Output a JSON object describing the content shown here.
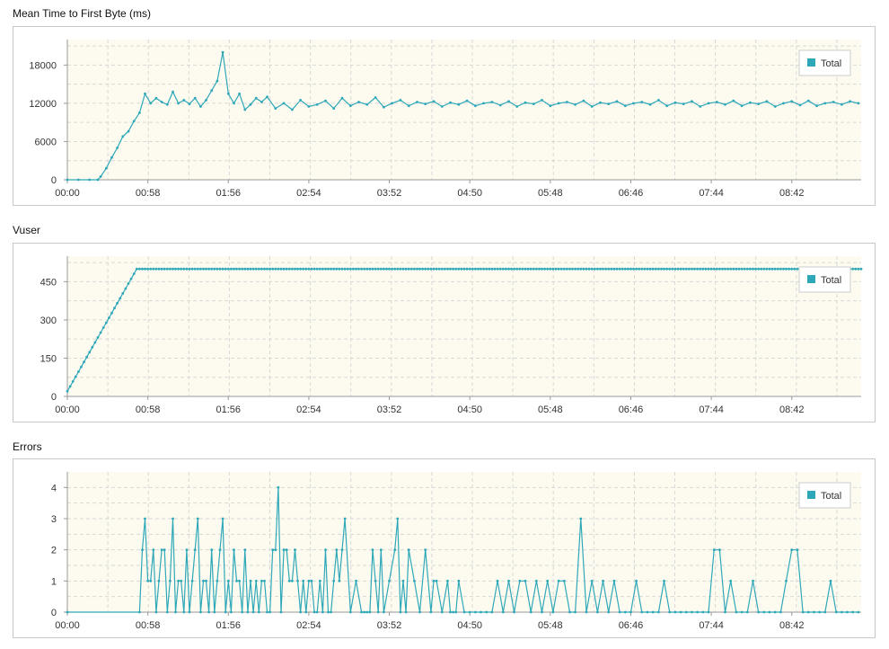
{
  "colors": {
    "series": "#2ea8b8",
    "plot_bg": "#fdfbf0",
    "grid": "#d8d8d8",
    "axis": "#999999"
  },
  "charts": [
    {
      "title": "Mean Time to First Byte (ms)"
    },
    {
      "title": "Vuser"
    },
    {
      "title": "Errors"
    }
  ],
  "chart_data": [
    {
      "type": "line",
      "title": "Mean Time to First Byte (ms)",
      "xlabel": "",
      "ylabel": "",
      "x_ticks": [
        "00:00",
        "00:58",
        "01:56",
        "02:54",
        "03:52",
        "04:50",
        "05:48",
        "06:46",
        "07:44",
        "08:42"
      ],
      "y_ticks": [
        0,
        6000,
        12000,
        18000
      ],
      "ylim": [
        0,
        22000
      ],
      "x_range_seconds": [
        0,
        572
      ],
      "grid": true,
      "legend": "top-right",
      "series": [
        {
          "name": "Total",
          "x": [
            0,
            8,
            16,
            22,
            24,
            28,
            32,
            36,
            40,
            44,
            48,
            52,
            56,
            60,
            64,
            68,
            72,
            76,
            80,
            84,
            88,
            92,
            96,
            100,
            104,
            108,
            112,
            116,
            120,
            124,
            128,
            132,
            136,
            140,
            144,
            150,
            156,
            162,
            168,
            174,
            180,
            186,
            192,
            198,
            204,
            210,
            216,
            222,
            228,
            234,
            240,
            246,
            252,
            258,
            264,
            270,
            276,
            282,
            288,
            294,
            300,
            306,
            312,
            318,
            324,
            330,
            336,
            342,
            348,
            354,
            360,
            366,
            372,
            378,
            384,
            390,
            396,
            402,
            408,
            414,
            420,
            426,
            432,
            438,
            444,
            450,
            456,
            462,
            468,
            474,
            480,
            486,
            492,
            498,
            504,
            510,
            516,
            522,
            528,
            534,
            540,
            546,
            552,
            558,
            564,
            570
          ],
          "y": [
            0,
            0,
            0,
            0,
            500,
            1800,
            3500,
            5000,
            6800,
            7600,
            9200,
            10500,
            13500,
            12000,
            12800,
            12200,
            11800,
            13800,
            12000,
            12500,
            11900,
            12800,
            11500,
            12500,
            14000,
            15500,
            20000,
            13500,
            12000,
            13500,
            11000,
            11800,
            12800,
            12200,
            13000,
            11200,
            12000,
            11000,
            12500,
            11500,
            11800,
            12400,
            11200,
            12800,
            11600,
            12200,
            11800,
            12900,
            11400,
            12000,
            12500,
            11600,
            12200,
            11900,
            12300,
            11500,
            12100,
            11800,
            12400,
            11600,
            12000,
            12200,
            11700,
            12300,
            11500,
            12100,
            11900,
            12500,
            11600,
            12000,
            12200,
            11800,
            12400,
            11500,
            12100,
            11900,
            12300,
            11600,
            12000,
            12200,
            11800,
            12500,
            11600,
            12100,
            11900,
            12300,
            11500,
            12000,
            12200,
            11800,
            12400,
            11600,
            12100,
            11900,
            12300,
            11500,
            12000,
            12300,
            11700,
            12400,
            11600,
            12000,
            12200,
            11800,
            12300,
            12000
          ]
        }
      ]
    },
    {
      "type": "line",
      "title": "Vuser",
      "xlabel": "",
      "ylabel": "",
      "x_ticks": [
        "00:00",
        "00:58",
        "01:56",
        "02:54",
        "03:52",
        "04:50",
        "05:48",
        "06:46",
        "07:44",
        "08:42"
      ],
      "y_ticks": [
        0,
        150,
        300,
        450
      ],
      "ylim": [
        0,
        550
      ],
      "x_range_seconds": [
        0,
        572
      ],
      "grid": true,
      "legend": "top-right",
      "series": [
        {
          "name": "Total",
          "x": [
            0,
            50,
            572
          ],
          "y": [
            20,
            500,
            500
          ]
        }
      ]
    },
    {
      "type": "line",
      "title": "Errors",
      "xlabel": "",
      "ylabel": "",
      "x_ticks": [
        "00:00",
        "00:58",
        "01:56",
        "02:54",
        "03:52",
        "04:50",
        "05:48",
        "06:46",
        "07:44",
        "08:42"
      ],
      "y_ticks": [
        0,
        1,
        2,
        3,
        4
      ],
      "ylim": [
        0,
        4.5
      ],
      "x_range_seconds": [
        0,
        572
      ],
      "grid": true,
      "legend": "top-right",
      "series": [
        {
          "name": "Total",
          "x": [
            0,
            52,
            54,
            56,
            58,
            60,
            62,
            64,
            66,
            68,
            70,
            72,
            74,
            76,
            78,
            80,
            82,
            84,
            86,
            88,
            90,
            92,
            94,
            96,
            98,
            100,
            102,
            104,
            106,
            108,
            110,
            112,
            114,
            116,
            118,
            120,
            122,
            124,
            126,
            128,
            130,
            132,
            134,
            136,
            138,
            140,
            142,
            144,
            146,
            148,
            150,
            152,
            154,
            156,
            158,
            160,
            162,
            164,
            166,
            168,
            170,
            172,
            174,
            176,
            178,
            180,
            182,
            184,
            186,
            188,
            190,
            192,
            194,
            196,
            198,
            200,
            204,
            208,
            212,
            214,
            216,
            218,
            220,
            222,
            224,
            226,
            228,
            232,
            236,
            238,
            240,
            242,
            244,
            246,
            250,
            254,
            258,
            262,
            264,
            266,
            270,
            274,
            276,
            278,
            280,
            282,
            286,
            290,
            294,
            298,
            302,
            306,
            310,
            314,
            318,
            322,
            326,
            330,
            334,
            338,
            342,
            346,
            350,
            354,
            358,
            362,
            366,
            370,
            374,
            378,
            382,
            386,
            390,
            394,
            398,
            402,
            406,
            410,
            414,
            418,
            422,
            426,
            430,
            434,
            438,
            442,
            446,
            450,
            454,
            458,
            462,
            466,
            470,
            474,
            478,
            482,
            486,
            490,
            494,
            498,
            502,
            506,
            510,
            514,
            518,
            522,
            526,
            530,
            534,
            538,
            542,
            546,
            550,
            554,
            558,
            562,
            566,
            570
          ],
          "y": [
            0,
            0,
            2,
            3,
            1,
            1,
            2,
            0,
            1,
            2,
            2,
            0,
            1,
            3,
            0,
            1,
            1,
            0,
            2,
            0,
            1,
            2,
            3,
            0,
            1,
            1,
            0,
            2,
            0,
            1,
            2,
            3,
            0,
            1,
            0,
            2,
            1,
            1,
            0,
            2,
            0,
            1,
            0,
            1,
            0,
            1,
            1,
            0,
            0,
            2,
            2,
            4,
            0,
            2,
            2,
            1,
            1,
            2,
            1,
            0,
            1,
            0,
            1,
            1,
            0,
            0,
            1,
            0,
            2,
            0,
            0,
            1,
            2,
            1,
            2,
            3,
            0,
            1,
            0,
            0,
            0,
            0,
            2,
            1,
            0,
            2,
            0,
            1,
            2,
            3,
            0,
            1,
            0,
            2,
            1,
            0,
            2,
            0,
            1,
            1,
            0,
            1,
            0,
            0,
            0,
            1,
            0,
            0,
            0,
            0,
            0,
            0,
            1,
            0,
            1,
            0,
            1,
            1,
            0,
            1,
            0,
            1,
            0,
            1,
            1,
            0,
            0,
            3,
            0,
            1,
            0,
            1,
            0,
            1,
            0,
            0,
            0,
            1,
            0,
            0,
            0,
            0,
            1,
            0,
            0,
            0,
            0,
            0,
            0,
            0,
            0,
            2,
            2,
            0,
            1,
            0,
            0,
            0,
            1,
            0,
            0,
            0,
            0,
            0,
            1,
            2,
            2,
            0,
            0,
            0,
            0,
            0,
            1,
            0,
            0,
            0,
            0,
            0
          ]
        }
      ]
    }
  ]
}
